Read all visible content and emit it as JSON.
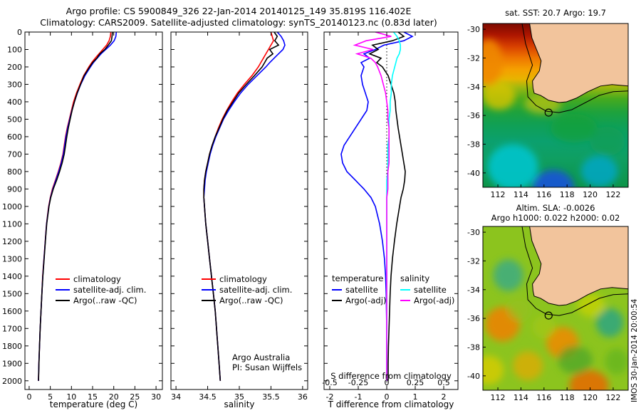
{
  "figure": {
    "title_line1": "Argo profile: CS 5900849_326 22-Jan-2014 20140125_149 35.819S 116.402E",
    "title_line2": "Climatology: CARS2009. Satellite-adjusted climatology: synTS_20140123.nc (0.83d later)"
  },
  "chart_data": {
    "type": "line",
    "note": "Three vertical ocean profile panels (depth 0-2000 m, inverted y) plus two geographic maps; values estimated from plot.",
    "panels": [
      "temperature",
      "salinity",
      "difference",
      "sst-map",
      "sla-map"
    ]
  },
  "profile_panels": {
    "depth_lim": [
      0,
      2050
    ],
    "depth_ticks": [
      0,
      100,
      200,
      300,
      400,
      500,
      600,
      700,
      800,
      900,
      1000,
      1100,
      1200,
      1300,
      1400,
      1500,
      1600,
      1700,
      1800,
      1900,
      2000
    ],
    "depths": [
      0,
      25,
      50,
      75,
      100,
      125,
      150,
      175,
      200,
      250,
      300,
      350,
      400,
      450,
      500,
      550,
      600,
      650,
      700,
      750,
      800,
      850,
      900,
      950,
      1000,
      1100,
      1200,
      1300,
      1400,
      1500,
      1600,
      1700,
      1800,
      1900,
      2000
    ],
    "temperature": {
      "xlabel": "temperature (deg C)",
      "xlim": [
        -1,
        31.5
      ],
      "xticks": [
        0,
        5,
        10,
        15,
        20,
        25,
        30
      ],
      "series": [
        {
          "name": "climatology",
          "color": "#ff0000",
          "values": [
            19.3,
            19.2,
            18.9,
            18.3,
            17.4,
            16.5,
            15.6,
            14.8,
            14.1,
            12.9,
            12.0,
            11.2,
            10.5,
            10.0,
            9.5,
            9.0,
            8.6,
            8.3,
            8.0,
            7.5,
            6.9,
            6.2,
            5.5,
            5.0,
            4.6,
            4.1,
            3.8,
            3.5,
            3.2,
            3.0,
            2.8,
            2.6,
            2.45,
            2.3,
            2.2
          ]
        },
        {
          "name": "satellite-adj. clim.",
          "color": "#0000ff",
          "values": [
            20.6,
            20.5,
            20.1,
            19.2,
            18.1,
            17.0,
            16.1,
            15.2,
            14.5,
            13.2,
            12.2,
            11.4,
            10.7,
            10.1,
            9.6,
            9.1,
            8.7,
            8.4,
            8.1,
            7.6,
            7.0,
            6.3,
            5.6,
            5.05,
            4.65,
            4.12,
            3.82,
            3.52,
            3.22,
            3.0,
            2.8,
            2.6,
            2.45,
            2.3,
            2.2
          ]
        },
        {
          "name": "Argo(..raw -QC)",
          "color": "#000000",
          "values": [
            19.7,
            19.6,
            19.45,
            18.7,
            17.9,
            16.7,
            16.0,
            15.0,
            14.3,
            13.0,
            12.15,
            11.35,
            10.7,
            10.15,
            9.7,
            9.25,
            8.9,
            8.6,
            8.3,
            7.8,
            7.2,
            6.5,
            5.7,
            5.1,
            4.7,
            4.15,
            3.84,
            3.54,
            3.24,
            3.01,
            2.81,
            2.61,
            2.46,
            2.31,
            2.21
          ]
        }
      ]
    },
    "salinity": {
      "xlabel": "salinity",
      "xlim": [
        33.92,
        36.08
      ],
      "xticks": [
        34,
        34.5,
        35,
        35.5,
        36
      ],
      "note1": "Argo Australia",
      "note2": "PI: Susan Wijffels",
      "series": [
        {
          "name": "climatology",
          "color": "#ff0000",
          "values": [
            35.5,
            35.52,
            35.54,
            35.5,
            35.46,
            35.42,
            35.38,
            35.34,
            35.3,
            35.2,
            35.08,
            34.97,
            34.88,
            34.8,
            34.73,
            34.67,
            34.62,
            34.57,
            34.53,
            34.5,
            34.47,
            34.45,
            34.44,
            34.44,
            34.45,
            34.47,
            34.5,
            34.53,
            34.56,
            34.59,
            34.62,
            34.64,
            34.66,
            34.68,
            34.7
          ]
        },
        {
          "name": "satellite-adj. clim.",
          "color": "#0000ff",
          "values": [
            35.6,
            35.66,
            35.7,
            35.72,
            35.69,
            35.62,
            35.55,
            35.48,
            35.42,
            35.28,
            35.14,
            35.02,
            34.92,
            34.83,
            34.75,
            34.69,
            34.63,
            34.58,
            34.54,
            34.51,
            34.48,
            34.46,
            34.45,
            34.44,
            34.45,
            34.47,
            34.5,
            34.53,
            34.56,
            34.59,
            34.62,
            34.64,
            34.66,
            34.68,
            34.7
          ]
        },
        {
          "name": "Argo(..raw -QC)",
          "color": "#000000",
          "values": [
            35.55,
            35.6,
            35.56,
            35.62,
            35.48,
            35.53,
            35.44,
            35.4,
            35.36,
            35.24,
            35.11,
            34.99,
            34.9,
            34.81,
            34.74,
            34.68,
            34.62,
            34.57,
            34.53,
            34.5,
            34.47,
            34.45,
            34.44,
            34.44,
            34.45,
            34.47,
            34.5,
            34.53,
            34.56,
            34.59,
            34.62,
            34.64,
            34.66,
            34.68,
            34.7
          ]
        }
      ]
    },
    "difference": {
      "xlabel": "T difference from climatology",
      "s_axis_label": "S difference from climatology",
      "xlim": [
        -2.2,
        2.5
      ],
      "xticks": [
        -2,
        -1,
        0,
        1,
        2
      ],
      "s_ticks": [
        "-0.5",
        "-0.25",
        "0",
        "0.25",
        "0.5"
      ],
      "legend": {
        "col1_header": "temperature",
        "col2_header": "salinity"
      },
      "t_series": [
        {
          "name": "satellite",
          "color": "#0000ff",
          "values": [
            0.6,
            0.9,
            0.6,
            -0.1,
            -0.4,
            -0.8,
            -0.6,
            -0.9,
            -0.8,
            -0.9,
            -0.85,
            -0.75,
            -0.65,
            -0.7,
            -0.9,
            -1.1,
            -1.3,
            -1.5,
            -1.6,
            -1.55,
            -1.4,
            -1.1,
            -0.8,
            -0.55,
            -0.4,
            -0.25,
            -0.15,
            -0.08,
            -0.04,
            -0.02,
            -0.01,
            0,
            0,
            0,
            0
          ]
        },
        {
          "name": "Argo(-adj)",
          "color": "#000000",
          "values": [
            0.4,
            0.6,
            0.2,
            -0.5,
            -0.3,
            -0.6,
            -0.2,
            -0.35,
            -0.15,
            0.05,
            0.15,
            0.25,
            0.3,
            0.32,
            0.36,
            0.4,
            0.45,
            0.5,
            0.55,
            0.6,
            0.65,
            0.63,
            0.58,
            0.5,
            0.45,
            0.35,
            0.27,
            0.2,
            0.15,
            0.12,
            0.1,
            0.08,
            0.06,
            0.05,
            0.05
          ]
        }
      ],
      "s_series": [
        {
          "name": "satellite",
          "color": "#00ffff",
          "values": [
            0.06,
            0.09,
            0.11,
            0.12,
            0.12,
            0.11,
            0.09,
            0.08,
            0.07,
            0.05,
            0.04,
            0.04,
            0.03,
            0.03,
            0.02,
            0.02,
            0.02,
            0.01,
            0.01,
            0.01,
            0.01,
            0.0,
            0.0,
            0.0,
            0.0,
            0.0,
            0.0,
            0.0,
            0.0,
            0.0,
            0.0,
            0.0,
            0.0,
            0.0,
            0.0
          ]
        },
        {
          "name": "Argo(-adj)",
          "color": "#ff00ff",
          "values": [
            -0.1,
            0.04,
            -0.18,
            -0.28,
            -0.12,
            -0.26,
            -0.14,
            -0.1,
            -0.08,
            -0.05,
            -0.03,
            -0.01,
            0.0,
            0.01,
            0.01,
            0.02,
            0.02,
            0.02,
            0.02,
            0.02,
            0.01,
            0.01,
            0.01,
            0.0,
            0.0,
            0.0,
            0.0,
            0.0,
            0.0,
            0.0,
            0.0,
            0.0,
            0.0,
            0.0,
            0.0
          ]
        }
      ]
    }
  },
  "maps": {
    "lon_ticks": [
      112,
      114,
      116,
      118,
      120,
      122
    ],
    "lat_ticks": [
      -30,
      -32,
      -34,
      -36,
      -38,
      -40
    ],
    "marker": {
      "lon": 116.4,
      "lat": -35.8
    },
    "land_color": "#f2c49c",
    "sst": {
      "title": "sat. SST: 20.7 Argo: 19.7"
    },
    "sla": {
      "title_line1": "Altim. SLA: -0.0026",
      "title_line2": "Argo h1000: 0.022 h2000: 0.02"
    },
    "watermark": "IMOS 30-Jan-2014 20:00:54"
  }
}
